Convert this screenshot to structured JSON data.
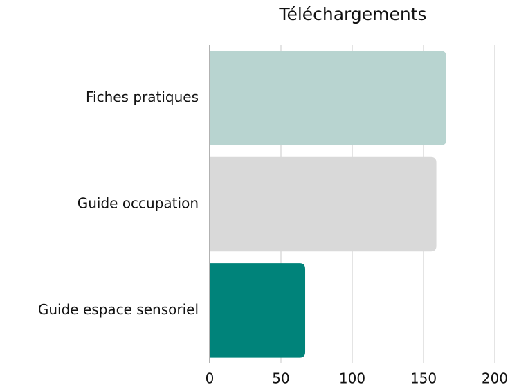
{
  "chart_data": {
    "type": "hbar",
    "title": "Téléchargements",
    "categories": [
      "Fiches pratiques",
      "Guide occupation",
      "Guide espace sensoriel"
    ],
    "values": [
      166,
      159,
      67
    ],
    "colors": [
      "#b8d4d0",
      "#d9d9d9",
      "#00837a"
    ],
    "xlim": [
      0,
      200
    ],
    "xticks": [
      0,
      50,
      100,
      150,
      200
    ],
    "grid": true
  }
}
